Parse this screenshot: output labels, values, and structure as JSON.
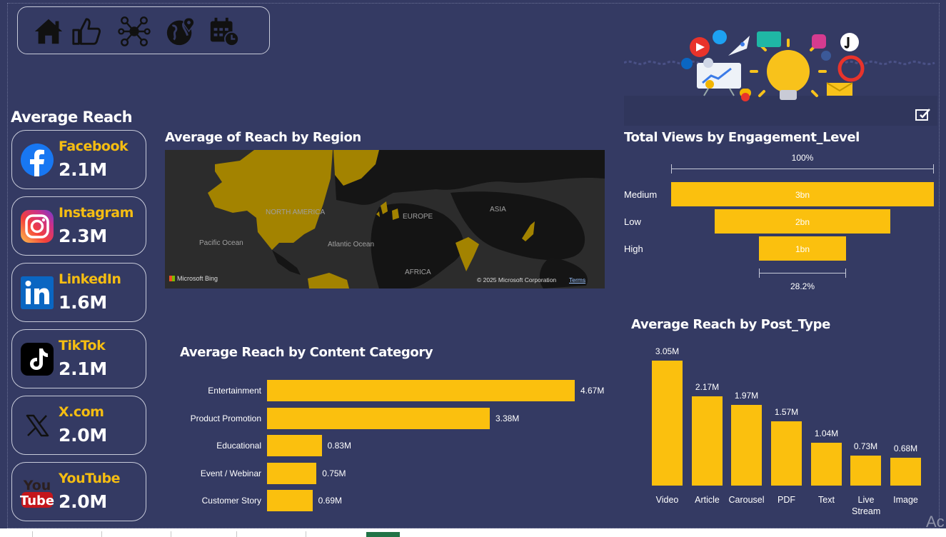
{
  "nav": {
    "icons": [
      "home-icon",
      "thumbs-up-icon",
      "network-icon",
      "globe-pin-icon",
      "calendar-clock-icon"
    ]
  },
  "average_reach": {
    "title": "Average Reach",
    "platforms": [
      {
        "name": "Facebook",
        "value": "2.1M",
        "icon": "facebook-icon"
      },
      {
        "name": "Instagram",
        "value": "2.3M",
        "icon": "instagram-icon"
      },
      {
        "name": "LinkedIn",
        "value": "1.6M",
        "icon": "linkedin-icon"
      },
      {
        "name": "TikTok",
        "value": "2.1M",
        "icon": "tiktok-icon"
      },
      {
        "name": "X.com",
        "value": "2.0M",
        "icon": "x-icon"
      },
      {
        "name": "YouTube",
        "value": "2.0M",
        "icon": "youtube-icon"
      }
    ]
  },
  "map": {
    "title": "Average of Reach by Region",
    "labels": [
      "NORTH AMERICA",
      "EUROPE",
      "ASIA",
      "AFRICA",
      "Pacific Ocean",
      "Atlantic Ocean"
    ],
    "bing": "Microsoft Bing",
    "copyright": "© 2025 Microsoft Corporation",
    "terms": "Terms"
  },
  "youtube_logo_text": {
    "top": "You",
    "bottom": "Tube"
  },
  "watermark": "Ac",
  "colors": {
    "background": "#343a63",
    "accent": "#fbc00e",
    "title": "#f5bd12"
  },
  "chart_data": [
    {
      "type": "funnel",
      "title": "Total Views by Engagement_Level",
      "top_pct": "100%",
      "bottom_pct": "28.2%",
      "categories": [
        "Medium",
        "Low",
        "High"
      ],
      "values": [
        3,
        2,
        1
      ],
      "value_labels": [
        "3bn",
        "2bn",
        "1bn"
      ],
      "unit": "bn"
    },
    {
      "type": "bar",
      "orientation": "horizontal",
      "title": "Average Reach by Content Category",
      "categories": [
        "Entertainment",
        "Product Promotion",
        "Educational",
        "Event / Webinar",
        "Customer Story"
      ],
      "values": [
        4.67,
        3.38,
        0.83,
        0.75,
        0.69
      ],
      "value_labels": [
        "4.67M",
        "3.38M",
        "0.83M",
        "0.75M",
        "0.69M"
      ],
      "unit": "M"
    },
    {
      "type": "bar",
      "orientation": "vertical",
      "title": "Average Reach by Post_Type",
      "categories": [
        "Video",
        "Article",
        "Carousel",
        "PDF",
        "Text",
        "Live Stream",
        "Image"
      ],
      "values": [
        3.05,
        2.17,
        1.97,
        1.57,
        1.04,
        0.73,
        0.68
      ],
      "value_labels": [
        "3.05M",
        "2.17M",
        "1.97M",
        "1.57M",
        "1.04M",
        "0.73M",
        "0.68M"
      ],
      "unit": "M"
    }
  ]
}
